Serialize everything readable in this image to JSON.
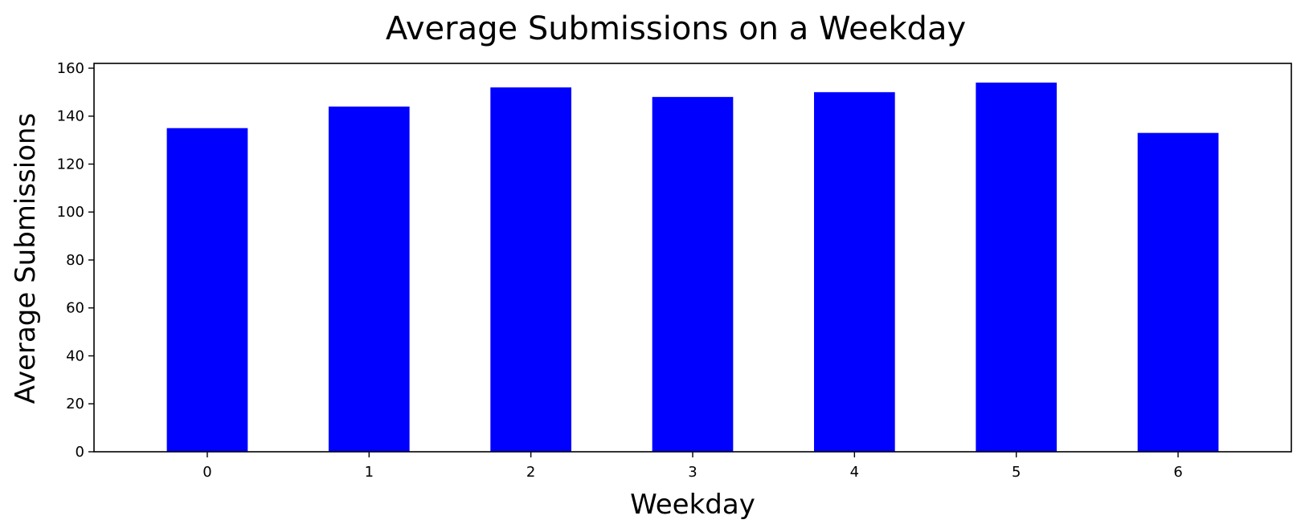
{
  "chart_data": {
    "type": "bar",
    "title": "Average Submissions on a Weekday",
    "xlabel": "Weekday",
    "ylabel": "Average Submissions",
    "categories": [
      "0",
      "1",
      "2",
      "3",
      "4",
      "5",
      "6"
    ],
    "values": [
      135,
      144,
      152,
      148,
      150,
      154,
      133
    ],
    "ylim": [
      0,
      162
    ],
    "yticks": [
      0,
      20,
      40,
      60,
      80,
      100,
      120,
      140,
      160
    ],
    "grid": false,
    "legend": "none",
    "bar_color": "#0000ff"
  }
}
